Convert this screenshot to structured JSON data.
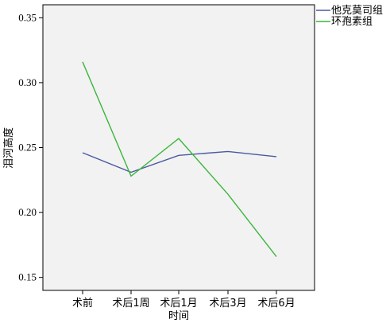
{
  "chart_data": {
    "type": "line",
    "categories": [
      "术前",
      "术后1周",
      "术后1月",
      "术后3月",
      "术后6月"
    ],
    "series": [
      {
        "name": "他克莫司组",
        "color": "#4a5aa0",
        "values": [
          0.246,
          0.231,
          0.244,
          0.247,
          0.243
        ]
      },
      {
        "name": "环孢素组",
        "color": "#3cb63c",
        "values": [
          0.316,
          0.228,
          0.257,
          0.214,
          0.166
        ]
      }
    ],
    "xlabel": "时间",
    "ylabel": "泪河高度",
    "ylim": [
      0.14,
      0.36
    ],
    "yticks": [
      0.15,
      0.2,
      0.25,
      0.3,
      0.35
    ],
    "ytick_labels": [
      "0.15",
      "0.20",
      "0.25",
      "0.30",
      "0.35"
    ],
    "legend_position": "top-right, outside plot",
    "plot_background": "#f2f2f2",
    "grid": false
  }
}
